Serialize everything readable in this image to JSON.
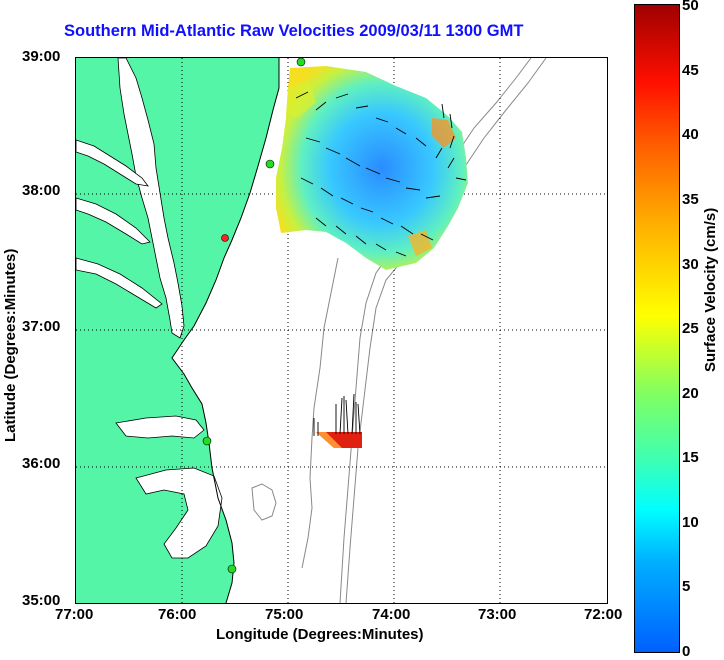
{
  "title": "Southern Mid-Atlantic Raw Velocities 2009/03/11 1300 GMT",
  "xaxis": {
    "label": "Longitude (Degrees:Minutes)",
    "ticks": [
      "77:00",
      "76:00",
      "75:00",
      "74:00",
      "73:00",
      "72:00"
    ]
  },
  "yaxis": {
    "label": "Latitude (Degrees:Minutes)",
    "ticks": [
      "39:00",
      "38:00",
      "37:00",
      "36:00",
      "35:00"
    ]
  },
  "colorbar": {
    "label": "Surface Velocity (cm/s)",
    "ticks": [
      "50",
      "45",
      "40",
      "35",
      "30",
      "25",
      "20",
      "15",
      "10",
      "5",
      "0"
    ],
    "range": [
      0,
      50
    ]
  },
  "map_extent": {
    "lon": [
      -77,
      -72
    ],
    "lat": [
      35,
      39
    ]
  },
  "colors": {
    "land": "#55f5a8",
    "title": "#1010ff",
    "bathymetry": "#888888",
    "station_green": "#22dd22",
    "station_red": "#ff2222"
  }
}
